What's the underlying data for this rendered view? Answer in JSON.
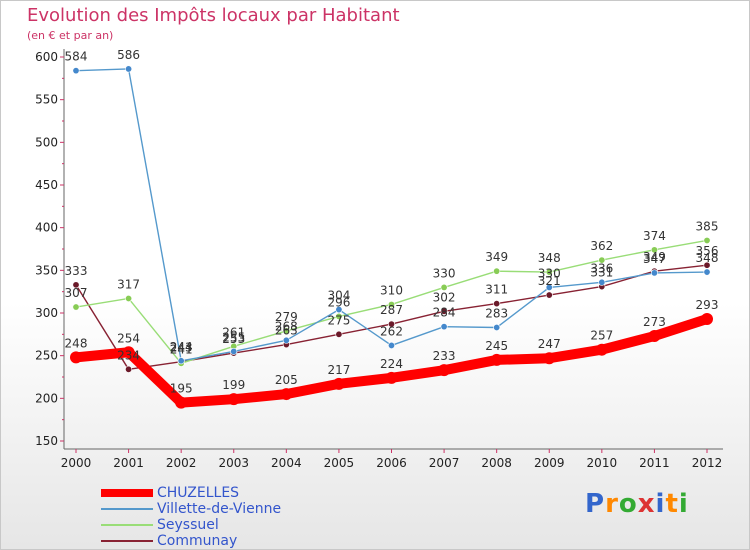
{
  "chart_data": {
    "type": "line",
    "title": "Evolution des Impôts locaux par Habitant",
    "subtitle": "(en € et par an)",
    "x": [
      "2000",
      "2001",
      "2002",
      "2003",
      "2004",
      "2005",
      "2006",
      "2007",
      "2008",
      "2009",
      "2010",
      "2011",
      "2012"
    ],
    "ylim": [
      150,
      610
    ],
    "yticks": [
      150,
      200,
      250,
      300,
      350,
      400,
      450,
      500,
      550,
      600
    ],
    "grid": false,
    "legend": "bottom-left",
    "series": [
      {
        "name": "Communay",
        "color": "#882233",
        "marker": "#6b1a2a",
        "values": [
          333,
          234,
          243,
          253,
          263,
          275,
          287,
          302,
          311,
          321,
          331,
          349,
          356
        ]
      },
      {
        "name": "Seyssuel",
        "color": "#99dd77",
        "marker": "#88cc55",
        "values": [
          307,
          317,
          241,
          261,
          279,
          296,
          310,
          330,
          349,
          348,
          362,
          374,
          385
        ]
      },
      {
        "name": "Villette-de-Vienne",
        "color": "#5599cc",
        "marker": "#4488cc",
        "values": [
          584,
          586,
          244,
          255,
          268,
          304,
          262,
          284,
          283,
          330,
          336,
          347,
          348
        ]
      },
      {
        "name": "CHUZELLES",
        "color": "#ff0000",
        "marker": "#ff0000",
        "values": [
          248,
          254,
          195,
          199,
          205,
          217,
          224,
          233,
          245,
          247,
          257,
          273,
          293
        ]
      }
    ]
  },
  "legend_items": [
    {
      "label": "CHUZELLES",
      "color": "#ff0000",
      "thick": true
    },
    {
      "label": "Villette-de-Vienne",
      "color": "#5599cc",
      "thick": false
    },
    {
      "label": "Seyssuel",
      "color": "#99dd77",
      "thick": false
    },
    {
      "label": "Communay",
      "color": "#882233",
      "thick": false
    }
  ],
  "logo": {
    "letters": [
      "P",
      "r",
      "o",
      "x",
      "i",
      "t",
      "i"
    ],
    "colors": [
      "#3366cc",
      "#ff8800",
      "#33aa33",
      "#dd3333",
      "#3366cc",
      "#ff8800",
      "#33aa33"
    ]
  }
}
